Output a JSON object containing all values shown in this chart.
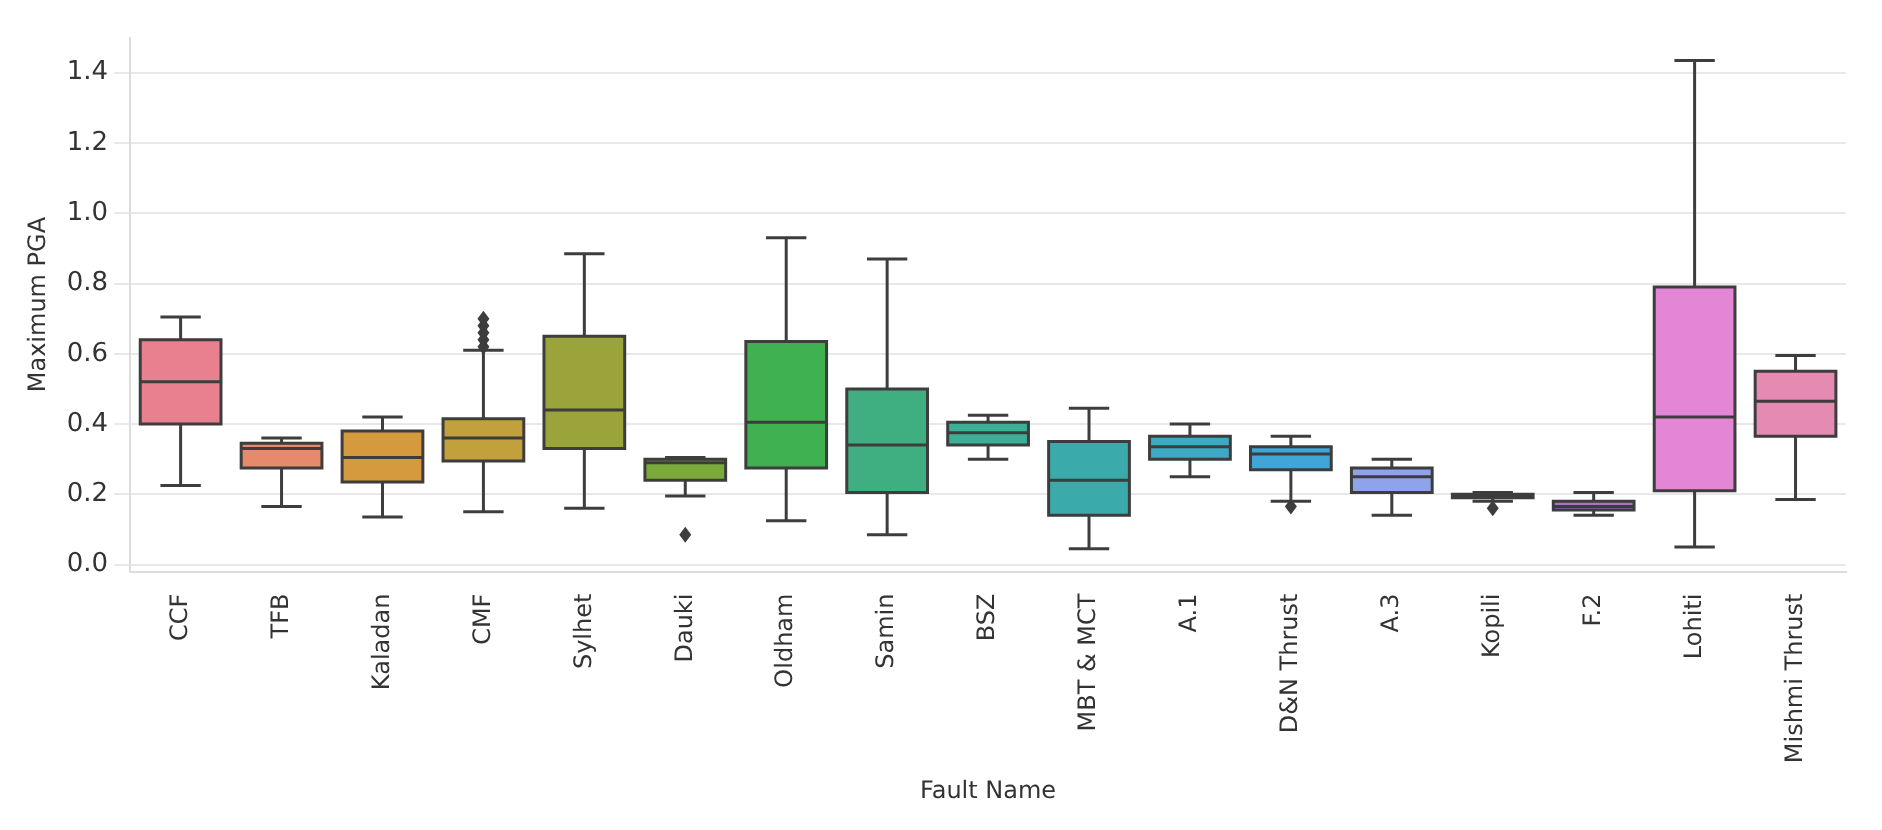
{
  "chart_data": {
    "type": "box",
    "xlabel": "Fault Name",
    "ylabel": "Maximum PGA",
    "categories": [
      "CCF",
      "TFB",
      "Kaladan",
      "CMF",
      "Sylhet",
      "Dauki",
      "Oldham",
      "Samin",
      "BSZ",
      "MBT & MCT",
      "A.1",
      "D&N Thrust",
      "A.3",
      "Kopili",
      "F.2",
      "Lohiti",
      "Mishmi Thrust"
    ],
    "colors": [
      "#e8808f",
      "#e58a6a",
      "#d59a3e",
      "#c2a13c",
      "#9aa43a",
      "#7aaa3a",
      "#3fb150",
      "#3fae80",
      "#3ab096",
      "#3aaaaa",
      "#3ea9c3",
      "#41a5d8",
      "#8fa3ea",
      "#a88ff0",
      "#a874c0",
      "#e486d6",
      "#e58ab0"
    ],
    "boxes": [
      {
        "low": 0.225,
        "q1": 0.4,
        "median": 0.52,
        "q3": 0.64,
        "high": 0.705
      },
      {
        "low": 0.165,
        "q1": 0.275,
        "median": 0.33,
        "q3": 0.345,
        "high": 0.36
      },
      {
        "low": 0.135,
        "q1": 0.235,
        "median": 0.305,
        "q3": 0.38,
        "high": 0.42
      },
      {
        "low": 0.15,
        "q1": 0.295,
        "median": 0.36,
        "q3": 0.415,
        "high": 0.61,
        "outliers": [
          0.62,
          0.64,
          0.66,
          0.68,
          0.7
        ]
      },
      {
        "low": 0.16,
        "q1": 0.33,
        "median": 0.44,
        "q3": 0.65,
        "high": 0.885
      },
      {
        "low": 0.195,
        "q1": 0.24,
        "median": 0.29,
        "q3": 0.3,
        "high": 0.305,
        "outliers": [
          0.085
        ]
      },
      {
        "low": 0.125,
        "q1": 0.275,
        "median": 0.405,
        "q3": 0.635,
        "high": 0.93
      },
      {
        "low": 0.085,
        "q1": 0.205,
        "median": 0.34,
        "q3": 0.5,
        "high": 0.87
      },
      {
        "low": 0.3,
        "q1": 0.34,
        "median": 0.375,
        "q3": 0.405,
        "high": 0.425
      },
      {
        "low": 0.045,
        "q1": 0.14,
        "median": 0.24,
        "q3": 0.35,
        "high": 0.445
      },
      {
        "low": 0.25,
        "q1": 0.3,
        "median": 0.335,
        "q3": 0.365,
        "high": 0.4
      },
      {
        "low": 0.18,
        "q1": 0.27,
        "median": 0.315,
        "q3": 0.335,
        "high": 0.365,
        "outliers": [
          0.165
        ]
      },
      {
        "low": 0.14,
        "q1": 0.205,
        "median": 0.25,
        "q3": 0.275,
        "high": 0.3
      },
      {
        "low": 0.18,
        "q1": 0.19,
        "median": 0.195,
        "q3": 0.2,
        "high": 0.205,
        "outliers": [
          0.16
        ]
      },
      {
        "low": 0.14,
        "q1": 0.155,
        "median": 0.165,
        "q3": 0.18,
        "high": 0.205
      },
      {
        "low": 0.05,
        "q1": 0.21,
        "median": 0.42,
        "q3": 0.79,
        "high": 1.435
      },
      {
        "low": 0.185,
        "q1": 0.365,
        "median": 0.465,
        "q3": 0.55,
        "high": 0.595
      }
    ],
    "ylim": [
      -0.02,
      1.5
    ],
    "yticks": [
      {
        "value": 0,
        "label": "0.0"
      },
      {
        "value": 0.2,
        "label": "0.2"
      },
      {
        "value": 0.4,
        "label": "0.4"
      },
      {
        "value": 0.6,
        "label": "0.6"
      },
      {
        "value": 0.8,
        "label": "0.8"
      },
      {
        "value": 1,
        "label": "1.0"
      },
      {
        "value": 1.2,
        "label": "1.2"
      },
      {
        "value": 1.4,
        "label": "1.4"
      }
    ],
    "grid": "y",
    "legend": false
  }
}
